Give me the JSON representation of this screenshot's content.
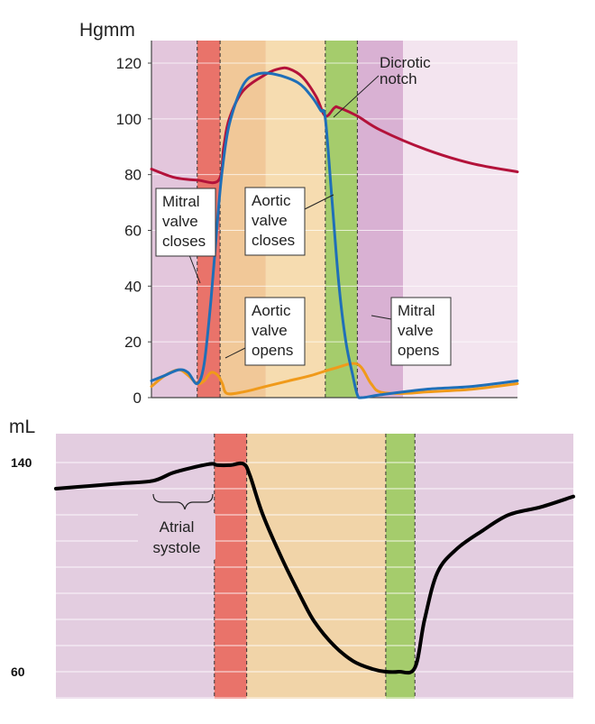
{
  "chart_data": [
    {
      "type": "line",
      "ylabel": "Hgmm",
      "ylim": [
        0,
        120
      ],
      "yticks": [
        "0",
        "20",
        "40",
        "60",
        "80",
        "100",
        "120"
      ],
      "x_unit": "s",
      "xlim": [
        0,
        0.8
      ],
      "grid": true,
      "phases": [
        {
          "x0": 0.0,
          "x1": 0.1,
          "color": "#e3c6dc"
        },
        {
          "x0": 0.1,
          "x1": 0.15,
          "color": "#e9736a"
        },
        {
          "x0": 0.15,
          "x1": 0.25,
          "color": "#f1c898"
        },
        {
          "x0": 0.25,
          "x1": 0.38,
          "color": "#f6dcb0"
        },
        {
          "x0": 0.38,
          "x1": 0.45,
          "color": "#a5cc6c"
        },
        {
          "x0": 0.45,
          "x1": 0.55,
          "color": "#d9b1d3"
        },
        {
          "x0": 0.55,
          "x1": 0.8,
          "color": "#f3e4ef"
        }
      ],
      "dashed_lines_x": [
        0.1,
        0.15,
        0.38,
        0.45
      ],
      "series": [
        {
          "key": "aortic",
          "color": "#b3123a",
          "points": [
            [
              0,
              82
            ],
            [
              0.05,
              79
            ],
            [
              0.1,
              78
            ],
            [
              0.147,
              78
            ],
            [
              0.158,
              90
            ],
            [
              0.17,
              100
            ],
            [
              0.2,
              110
            ],
            [
              0.25,
              116
            ],
            [
              0.28,
              118
            ],
            [
              0.3,
              118
            ],
            [
              0.33,
              115
            ],
            [
              0.36,
              108
            ],
            [
              0.38,
              101
            ],
            [
              0.4,
              104
            ],
            [
              0.41,
              104
            ],
            [
              0.45,
              101
            ],
            [
              0.5,
              96
            ],
            [
              0.6,
              89
            ],
            [
              0.7,
              84
            ],
            [
              0.8,
              81
            ]
          ]
        },
        {
          "key": "ventricular",
          "color": "#1f6fb8",
          "points": [
            [
              0,
              6
            ],
            [
              0.03,
              8
            ],
            [
              0.06,
              10
            ],
            [
              0.08,
              9
            ],
            [
              0.1,
              5
            ],
            [
              0.115,
              12
            ],
            [
              0.13,
              35
            ],
            [
              0.145,
              65
            ],
            [
              0.155,
              82
            ],
            [
              0.17,
              98
            ],
            [
              0.2,
              112
            ],
            [
              0.23,
              116
            ],
            [
              0.27,
              116
            ],
            [
              0.32,
              113
            ],
            [
              0.35,
              108
            ],
            [
              0.37,
              103
            ],
            [
              0.38,
              100
            ],
            [
              0.395,
              70
            ],
            [
              0.41,
              40
            ],
            [
              0.425,
              20
            ],
            [
              0.44,
              8
            ],
            [
              0.45,
              1
            ],
            [
              0.46,
              0
            ],
            [
              0.5,
              1
            ],
            [
              0.6,
              3
            ],
            [
              0.7,
              4
            ],
            [
              0.8,
              6
            ]
          ]
        },
        {
          "key": "atrial",
          "color": "#f09a1a",
          "points": [
            [
              0,
              4
            ],
            [
              0.03,
              8
            ],
            [
              0.06,
              10
            ],
            [
              0.08,
              8
            ],
            [
              0.1,
              5
            ],
            [
              0.115,
              6
            ],
            [
              0.13,
              9
            ],
            [
              0.145,
              8
            ],
            [
              0.155,
              5
            ],
            [
              0.165,
              1.5
            ],
            [
              0.2,
              2
            ],
            [
              0.25,
              4
            ],
            [
              0.3,
              6
            ],
            [
              0.35,
              8
            ],
            [
              0.4,
              10.5
            ],
            [
              0.45,
              12
            ],
            [
              0.48,
              5
            ],
            [
              0.5,
              2
            ],
            [
              0.55,
              1.5
            ],
            [
              0.6,
              2
            ],
            [
              0.7,
              3
            ],
            [
              0.8,
              5
            ]
          ]
        }
      ],
      "annotations": {
        "dicrotic": [
          "Dicrotic",
          "notch"
        ],
        "mitral_closes": [
          "Mitral",
          "valve",
          "closes"
        ],
        "aortic_closes": [
          "Aortic",
          "valve",
          "closes"
        ],
        "aortic_opens": [
          "Aortic",
          "valve",
          "opens"
        ],
        "mitral_opens": [
          "Mitral",
          "valve",
          "opens"
        ]
      }
    },
    {
      "type": "line",
      "ylabel": "mL",
      "ylim": [
        60,
        140
      ],
      "yticks": [
        "60",
        "140"
      ],
      "x_unit": "s",
      "xlim": [
        0,
        0.8
      ],
      "grid": true,
      "phases": [
        {
          "x0": 0.0,
          "x1": 0.245,
          "color": "#e3cde0"
        },
        {
          "x0": 0.245,
          "x1": 0.295,
          "color": "#e9736a"
        },
        {
          "x0": 0.295,
          "x1": 0.51,
          "color": "#f1d4a8"
        },
        {
          "x0": 0.51,
          "x1": 0.555,
          "color": "#a5cc6c"
        },
        {
          "x0": 0.555,
          "x1": 0.8,
          "color": "#e3cde0"
        }
      ],
      "dashed_lines_x": [
        0.245,
        0.295,
        0.51,
        0.555
      ],
      "series": [
        {
          "key": "volume",
          "color": "#000000",
          "points": [
            [
              0,
              130
            ],
            [
              0.05,
              131
            ],
            [
              0.1,
              132
            ],
            [
              0.15,
              133
            ],
            [
              0.18,
              136
            ],
            [
              0.21,
              138
            ],
            [
              0.24,
              139.5
            ],
            [
              0.25,
              139
            ],
            [
              0.27,
              139
            ],
            [
              0.29,
              139.5
            ],
            [
              0.3,
              135
            ],
            [
              0.32,
              120
            ],
            [
              0.35,
              103
            ],
            [
              0.38,
              88
            ],
            [
              0.4,
              79
            ],
            [
              0.43,
              70
            ],
            [
              0.46,
              64
            ],
            [
              0.49,
              61
            ],
            [
              0.51,
              60
            ],
            [
              0.53,
              60
            ],
            [
              0.555,
              61.5
            ],
            [
              0.57,
              80
            ],
            [
              0.59,
              98
            ],
            [
              0.62,
              107
            ],
            [
              0.66,
              114
            ],
            [
              0.7,
              120
            ],
            [
              0.75,
              123
            ],
            [
              0.8,
              127
            ]
          ]
        }
      ],
      "annotations": {
        "atrial_systole": [
          "Atrial",
          "systole"
        ]
      }
    }
  ]
}
